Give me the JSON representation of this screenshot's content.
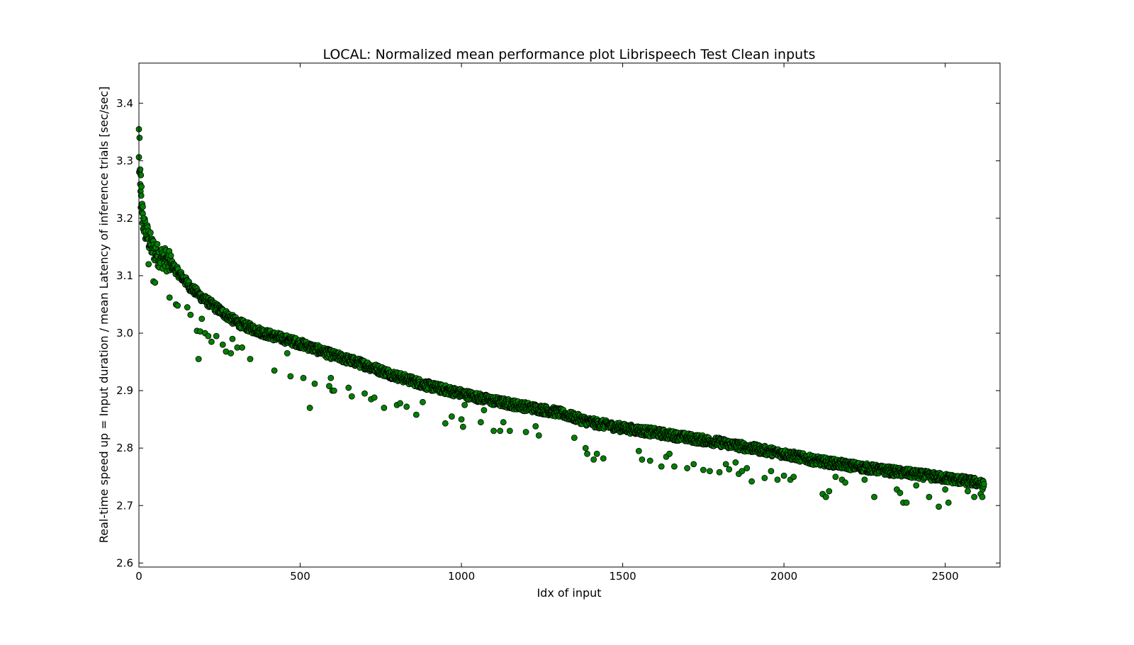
{
  "chart_data": {
    "type": "scatter",
    "title": "LOCAL: Normalized mean performance plot Librispeech Test Clean inputs",
    "xlabel": "Idx of input",
    "ylabel": "Real-time speed up = Input duration / mean Latency of inference trials [sec/sec]",
    "xlim": [
      0,
      2670
    ],
    "ylim": [
      2.593,
      3.47
    ],
    "xticks": [
      0,
      500,
      1000,
      1500,
      2000,
      2500
    ],
    "yticks": [
      2.6,
      2.7,
      2.8,
      2.9,
      3.0,
      3.1,
      3.2,
      3.3,
      3.4
    ],
    "grid": false,
    "legend": "none",
    "marker_color": "#008000",
    "marker_edge_color": "#000000",
    "series": [
      {
        "n_points": 2620,
        "trend": {
          "x": [
            0,
            5,
            10,
            20,
            40,
            60,
            80,
            100,
            130,
            160,
            200,
            250,
            300,
            350,
            400,
            450,
            500,
            600,
            700,
            800,
            900,
            1000,
            1100,
            1200,
            1300,
            1400,
            1500,
            1600,
            1700,
            1800,
            1900,
            2000,
            2100,
            2200,
            2300,
            2400,
            2500,
            2600,
            2620
          ],
          "y": [
            3.3,
            3.24,
            3.2,
            3.18,
            3.15,
            3.135,
            3.13,
            3.12,
            3.1,
            3.08,
            3.06,
            3.04,
            3.02,
            3.008,
            2.998,
            2.99,
            2.982,
            2.962,
            2.945,
            2.925,
            2.908,
            2.895,
            2.882,
            2.872,
            2.862,
            2.845,
            2.835,
            2.827,
            2.818,
            2.81,
            2.8,
            2.79,
            2.778,
            2.77,
            2.762,
            2.755,
            2.748,
            2.74,
            2.735
          ]
        },
        "outliers": {
          "x": [
            0,
            2,
            4,
            6,
            8,
            10,
            12,
            14,
            45,
            50,
            30,
            95,
            115,
            120,
            150,
            160,
            180,
            185,
            190,
            195,
            205,
            215,
            225,
            240,
            260,
            270,
            285,
            290,
            305,
            320,
            345,
            420,
            460,
            470,
            510,
            530,
            545,
            590,
            595,
            600,
            605,
            650,
            660,
            700,
            720,
            730,
            760,
            800,
            810,
            830,
            860,
            880,
            950,
            970,
            1000,
            1005,
            1010,
            1060,
            1070,
            1100,
            1120,
            1130,
            1150,
            1200,
            1230,
            1240,
            1350,
            1385,
            1390,
            1410,
            1420,
            1440,
            1550,
            1560,
            1585,
            1620,
            1635,
            1645,
            1660,
            1700,
            1720,
            1750,
            1770,
            1800,
            1820,
            1830,
            1850,
            1860,
            1870,
            1885,
            1900,
            1940,
            1960,
            1980,
            2000,
            2020,
            2030,
            2120,
            2130,
            2140,
            2160,
            2180,
            2190,
            2250,
            2280,
            2350,
            2360,
            2370,
            2380,
            2410,
            2450,
            2480,
            2500,
            2510,
            2570,
            2590,
            2610,
            2615
          ],
          "y": [
            3.355,
            3.34,
            3.285,
            3.275,
            3.255,
            3.225,
            3.22,
            3.2,
            3.09,
            3.088,
            3.12,
            3.062,
            3.05,
            3.048,
            3.045,
            3.032,
            3.004,
            2.955,
            3.003,
            3.025,
            3.0,
            2.995,
            2.985,
            2.995,
            2.98,
            2.968,
            2.965,
            2.99,
            2.975,
            2.975,
            2.955,
            2.935,
            2.965,
            2.925,
            2.922,
            2.87,
            2.912,
            2.908,
            2.922,
            2.9,
            2.9,
            2.905,
            2.89,
            2.895,
            2.885,
            2.888,
            2.87,
            2.875,
            2.878,
            2.872,
            2.858,
            2.88,
            2.843,
            2.855,
            2.85,
            2.837,
            2.875,
            2.845,
            2.866,
            2.83,
            2.83,
            2.845,
            2.83,
            2.828,
            2.838,
            2.822,
            2.818,
            2.8,
            2.79,
            2.78,
            2.79,
            2.782,
            2.795,
            2.78,
            2.778,
            2.768,
            2.785,
            2.79,
            2.768,
            2.765,
            2.772,
            2.762,
            2.76,
            2.758,
            2.772,
            2.763,
            2.775,
            2.755,
            2.76,
            2.765,
            2.742,
            2.748,
            2.76,
            2.745,
            2.752,
            2.745,
            2.75,
            2.72,
            2.715,
            2.725,
            2.75,
            2.745,
            2.74,
            2.745,
            2.715,
            2.728,
            2.722,
            2.705,
            2.705,
            2.735,
            2.715,
            2.698,
            2.728,
            2.705,
            2.725,
            2.715,
            2.72,
            2.715
          ]
        }
      }
    ]
  }
}
